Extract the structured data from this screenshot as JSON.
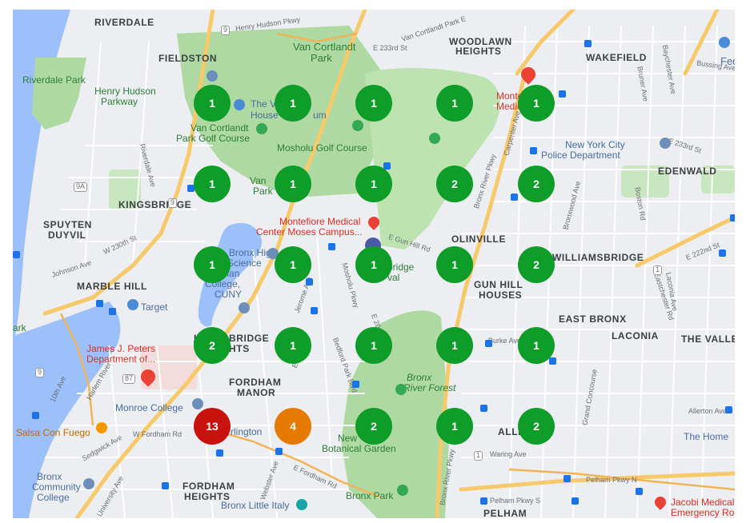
{
  "map": {
    "clusters": [
      {
        "count": "1",
        "color": "#0f9d2a"
      },
      {
        "count": "1",
        "color": "#0f9d2a"
      },
      {
        "count": "1",
        "color": "#0f9d2a"
      },
      {
        "count": "1",
        "color": "#0f9d2a"
      },
      {
        "count": "1",
        "color": "#0f9d2a"
      },
      {
        "count": "1",
        "color": "#0f9d2a"
      },
      {
        "count": "1",
        "color": "#0f9d2a"
      },
      {
        "count": "1",
        "color": "#0f9d2a"
      },
      {
        "count": "2",
        "color": "#0f9d2a"
      },
      {
        "count": "2",
        "color": "#0f9d2a"
      },
      {
        "count": "1",
        "color": "#0f9d2a"
      },
      {
        "count": "1",
        "color": "#0f9d2a"
      },
      {
        "count": "1",
        "color": "#0f9d2a"
      },
      {
        "count": "1",
        "color": "#0f9d2a"
      },
      {
        "count": "2",
        "color": "#0f9d2a"
      },
      {
        "count": "2",
        "color": "#0f9d2a"
      },
      {
        "count": "1",
        "color": "#0f9d2a"
      },
      {
        "count": "1",
        "color": "#0f9d2a"
      },
      {
        "count": "1",
        "color": "#0f9d2a"
      },
      {
        "count": "1",
        "color": "#0f9d2a"
      },
      {
        "count": "13",
        "color": "#c8120e"
      },
      {
        "count": "4",
        "color": "#e67a00"
      },
      {
        "count": "2",
        "color": "#0f9d2a"
      },
      {
        "count": "1",
        "color": "#0f9d2a"
      },
      {
        "count": "2",
        "color": "#0f9d2a"
      }
    ],
    "labels": {
      "riverdale": "RIVERDALE",
      "fieldston": "FIELDSTON",
      "riverdale_park": "Riverdale Park",
      "henry_hudson_pkwy_1": "Henry Hudson",
      "henry_hudson_pkwy_2": "Parkway",
      "van_cortlandt_park_1": "Van Cortlandt",
      "van_cortlandt_park_2": "Park",
      "woodlawn_heights_1": "WOODLAWN",
      "woodlawn_heights_2": "HEIGHTS",
      "wakefield": "WAKEFIELD",
      "fed": "Fed",
      "van_cortlandt_house_1": "The V",
      "van_cortlandt_house_2": "House",
      "van_cortlandt_house_3": "um",
      "montefiore_1": "Monte",
      "montefiore_2": "Medical",
      "vc_golf_1": "Van Cortlandt",
      "vc_golf_2": "Park Golf Course",
      "mosholu_golf": "Mosholu Golf Course",
      "nypd_1": "New York City",
      "nypd_2": "Police Department",
      "edenwald": "EDENWALD",
      "kingsbridge": "KINGSBRIDGE",
      "van_park_1": "Van",
      "van_park_2": "Park",
      "spuyten_duyvil_1": "SPUYTEN",
      "spuyten_duyvil_2": "DUYVIL",
      "montefiore_moses_1": "Montefiore Medical",
      "montefiore_moses_2": "Center Moses Campus...",
      "olinville": "OLINVILLE",
      "williamsbridge": "WILLIAMSBRIDGE",
      "bronx_high_1": "Bronx High",
      "bronx_high_2": "Science",
      "lehman_1": "Lehman",
      "lehman_2": "College,",
      "lehman_3": "CUNY",
      "marble_hill": "MARBLE HILL",
      "bridge_val_1": "bridge",
      "bridge_val_2": "val",
      "gun_hill_1": "GUN HILL",
      "gun_hill_2": "HOUSES",
      "target": "Target",
      "east_bronx": "EAST BRONX",
      "laconia": "LACONIA",
      "the_valle": "THE VALLE",
      "park_left": "ark",
      "kingsbridge_heights_1": "KI",
      "kingsbridge_heights_2": "BRIDGE",
      "kingsbridge_heights_3": "HTS",
      "james_peters_1": "James J. Peters",
      "james_peters_2": "Department of...",
      "bronx_river_forest_1": "Bronx",
      "bronx_river_forest_2": "River Forest",
      "fordham_manor_1": "FORDHAM",
      "fordham_manor_2": "MANOR",
      "monroe_college": "Monroe College",
      "salsa": "Salsa Con Fuego",
      "arlington": "rlington",
      "new_botanical_1": "New",
      "new_botanical_2": "Botanical Garden",
      "allerton": "ALLE",
      "the_home": "The Home",
      "bronx_college_1": "Bronx",
      "bronx_college_2": "Community",
      "bronx_college_3": "College",
      "fordham_heights_1": "FORDHAM",
      "fordham_heights_2": "HEIGHTS",
      "bronx_little_italy": "Bronx Little Italy",
      "bronx_park": "Bronx Park",
      "pelham": "PELHAM",
      "jacobi_1": "Jacobi Medical",
      "jacobi_2": "Emergency Room",
      "harlem_river": "Harlem River",
      "bronx_river_pkwy": "Bronx River Pkwy",
      "bronx_river_pkwy_2": "Bronx River Pkwy",
      "e_fordham_rd": "E Fordham Rd",
      "w_fordham_rd": "W Fordham Rd",
      "pelham_pkwy_n": "Pelham Pkwy N",
      "pelham_pkwy_s": "Pelham Pkwy S",
      "e_233rd_st": "E 233rd St",
      "e_233rd_st_2": "E 233rd St",
      "e_222nd_st": "E 222nd St",
      "e_gun_hill_rd": "E Gun Hill Rd",
      "burke_ave": "Burke Ave",
      "allerton_ave": "Allerton Ave",
      "waring_ave": "Waring Ave",
      "webster_ave": "Webster Ave",
      "jerome_ave": "Jerome Ave",
      "mosholu_pkwy": "Mosholu Pkwy",
      "bedford_park": "Bedford Park Blvd",
      "johnson_ave": "Johnson Ave",
      "w_230th_st": "W 230th St",
      "riverdale_ave": "Riverdale Ave",
      "henry_hudson_pkwy_road": "Henry Hudson Pkwy",
      "van_cortlandt_park_s": "Van Cortlandt Park E",
      "bussing_ave": "Bussing Ave",
      "baychester_ave": "Baychester Ave",
      "bruner_ave": "Bruner Ave",
      "carpenter_ave": "Carpenter Ave",
      "bronxwood_ave": "Bronxwood Ave",
      "boston_rd": "Boston Rd",
      "eastchester_rd": "Eastchester Rd",
      "laconia_ave": "Laconia Ave",
      "sedgwick_ave": "Sedgwick Ave",
      "university_ave": "University Ave",
      "tenth_ave": "10th Ave",
      "grand_concourse": "Grand Concourse",
      "e_204th_st": "E 204th St",
      "e_198th_st": "E 198th St",
      "route_9": "9",
      "route_9a": "9A",
      "route_87": "87",
      "route_1": "1"
    }
  }
}
